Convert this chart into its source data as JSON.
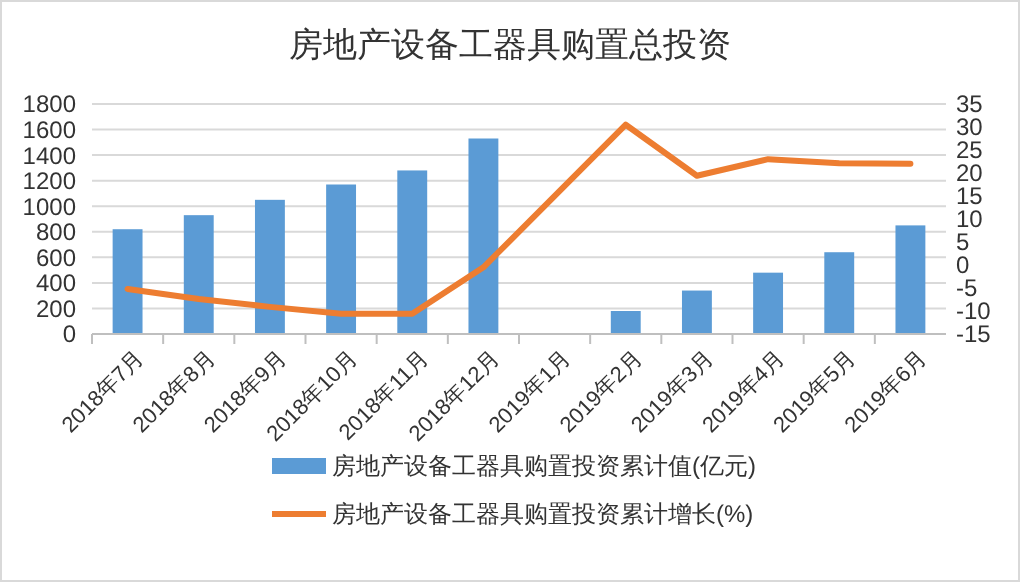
{
  "chart_data": {
    "type": "bar",
    "title": "房地产设备工器具购置总投资",
    "categories": [
      "2018年7月",
      "2018年8月",
      "2018年9月",
      "2018年10月",
      "2018年11月",
      "2018年12月",
      "2019年1月",
      "2019年2月",
      "2019年3月",
      "2019年4月",
      "2019年5月",
      "2019年6月"
    ],
    "series": [
      {
        "name": "房地产设备工器具购置投资累计值(亿元)",
        "color": "#5b9bd5",
        "values": [
          820,
          930,
          1050,
          1170,
          1280,
          1530,
          null,
          180,
          340,
          480,
          640,
          850
        ]
      },
      {
        "name": "房地产设备工器具购置投资累计增长(%)",
        "type": "line",
        "axis": "y2",
        "color": "#ed7d31",
        "values": [
          -5.2,
          -7.4,
          -9.1,
          -10.6,
          -10.6,
          -0.5,
          null,
          30.5,
          19.4,
          23,
          22.1,
          22
        ]
      }
    ],
    "ylim": [
      0,
      1800
    ],
    "yticks": [
      0,
      200,
      400,
      600,
      800,
      1000,
      1200,
      1400,
      1600,
      1800
    ],
    "y2lim": [
      -15,
      35
    ],
    "y2ticks": [
      -15,
      -10,
      -5,
      0,
      5,
      10,
      15,
      20,
      25,
      30,
      35
    ],
    "grid": "y",
    "legend": "bottom",
    "marker": "none",
    "line_style": "solid"
  }
}
